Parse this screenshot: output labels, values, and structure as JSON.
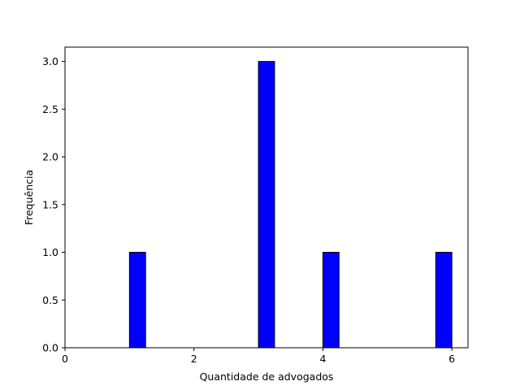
{
  "chart_data": {
    "type": "bar",
    "title": "",
    "xlabel": "Quantidade de advogados",
    "ylabel": "Frequência",
    "xlim": [
      0,
      6.25
    ],
    "ylim": [
      0,
      3.15
    ],
    "xticks": [
      0,
      2,
      4,
      6
    ],
    "yticks": [
      0.0,
      0.5,
      1.0,
      1.5,
      2.0,
      2.5,
      3.0
    ],
    "xtick_labels": [
      "0",
      "2",
      "4",
      "6"
    ],
    "ytick_labels": [
      "0.0",
      "0.5",
      "1.0",
      "1.5",
      "2.0",
      "2.5",
      "3.0"
    ],
    "bin_width": 0.25,
    "bins": [
      {
        "start": 1.0,
        "end": 1.25,
        "value": 1
      },
      {
        "start": 3.0,
        "end": 3.25,
        "value": 3
      },
      {
        "start": 4.0,
        "end": 4.25,
        "value": 1
      },
      {
        "start": 5.75,
        "end": 6.0,
        "value": 1
      }
    ],
    "bar_color": "#0000ff",
    "edge_color": "#000000",
    "grid": false,
    "legend": "none"
  }
}
